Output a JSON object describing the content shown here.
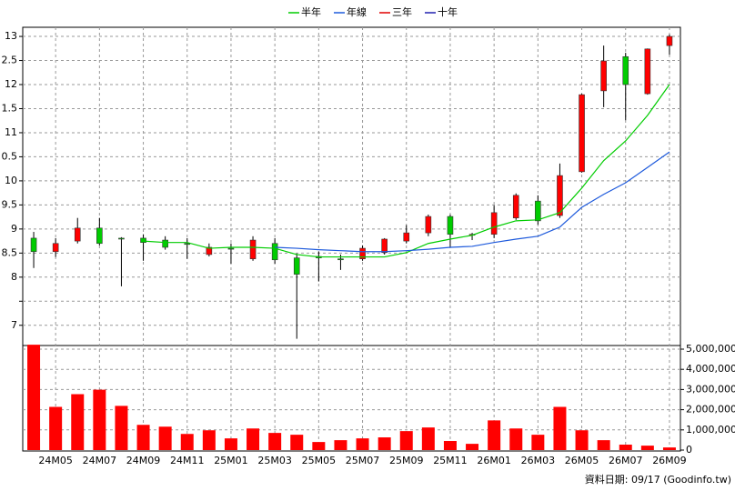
{
  "chart_data": [
    {
      "type": "candlestick",
      "categories": [
        null,
        "24M05",
        null,
        "24M07",
        null,
        "24M09",
        null,
        "24M11",
        null,
        "25M01",
        null,
        "25M03",
        null,
        "25M05",
        null,
        "25M07",
        null,
        "25M09",
        null,
        "25M11",
        null,
        "26M01",
        null,
        "26M03",
        null,
        "26M05",
        null,
        "26M07",
        null,
        "26M09"
      ],
      "open": [
        8.81,
        8.53,
        8.75,
        9.02,
        8.81,
        8.81,
        8.77,
        8.7,
        8.47,
        8.6,
        8.38,
        8.7,
        8.4,
        8.43,
        8.38,
        8.38,
        8.51,
        8.75,
        8.92,
        9.26,
        8.87,
        8.89,
        9.23,
        9.58,
        9.28,
        10.19,
        11.87,
        12.58,
        11.81,
        12.81
      ],
      "high": [
        8.94,
        8.81,
        9.23,
        9.23,
        8.83,
        8.89,
        8.85,
        8.81,
        8.7,
        8.7,
        8.85,
        8.81,
        8.49,
        8.53,
        8.47,
        8.66,
        8.81,
        9.08,
        9.3,
        9.3,
        8.92,
        9.49,
        9.74,
        9.7,
        10.36,
        11.81,
        12.81,
        12.66,
        12.75,
        13.04
      ],
      "low": [
        8.19,
        8.42,
        8.7,
        8.66,
        7.81,
        8.34,
        8.57,
        8.38,
        8.43,
        8.28,
        8.34,
        8.28,
        6.72,
        7.91,
        8.15,
        8.34,
        8.47,
        8.7,
        8.85,
        8.62,
        8.77,
        8.81,
        9.19,
        9.09,
        9.23,
        10.17,
        11.53,
        11.26,
        11.79,
        12.62
      ],
      "close": [
        8.53,
        8.7,
        9.02,
        8.7,
        8.79,
        8.72,
        8.62,
        8.68,
        8.62,
        8.58,
        8.77,
        8.36,
        8.06,
        8.4,
        8.36,
        8.6,
        8.79,
        8.92,
        9.26,
        8.89,
        8.89,
        9.34,
        9.7,
        9.17,
        10.11,
        11.79,
        12.49,
        12.0,
        12.74,
        13.0
      ],
      "up_color": "#ff0000",
      "down_color": "#00cc00",
      "series": [
        {
          "name": "半年",
          "color": "#00cc00",
          "values": [
            null,
            null,
            null,
            null,
            null,
            8.75,
            8.72,
            8.72,
            8.6,
            8.62,
            8.62,
            8.6,
            8.47,
            8.42,
            8.42,
            8.42,
            8.42,
            8.51,
            8.7,
            8.79,
            8.87,
            9.04,
            9.17,
            9.19,
            9.34,
            9.85,
            10.42,
            10.83,
            11.36,
            12.0
          ]
        },
        {
          "name": "年線",
          "color": "#1e5adc",
          "values": [
            null,
            null,
            null,
            null,
            null,
            null,
            null,
            null,
            null,
            null,
            null,
            8.62,
            8.6,
            8.57,
            8.55,
            8.53,
            8.53,
            8.55,
            8.58,
            8.62,
            8.64,
            8.72,
            8.79,
            8.85,
            9.04,
            9.45,
            9.72,
            9.96,
            10.28,
            10.6
          ]
        },
        {
          "name": "三年",
          "color": "#e00000",
          "values": [
            null,
            null,
            null,
            null,
            null,
            null,
            null,
            null,
            null,
            null,
            null,
            null,
            null,
            null,
            null,
            null,
            null,
            null,
            null,
            null,
            null,
            null,
            null,
            null,
            null,
            null,
            null,
            null,
            null,
            null
          ]
        },
        {
          "name": "十年",
          "color": "#2020b0",
          "values": [
            null,
            null,
            null,
            null,
            null,
            null,
            null,
            null,
            null,
            null,
            null,
            null,
            null,
            null,
            null,
            null,
            null,
            null,
            null,
            null,
            null,
            null,
            null,
            null,
            null,
            null,
            null,
            null,
            null,
            null
          ]
        }
      ],
      "ylim": [
        6.58,
        13.19
      ],
      "yticks": [
        13,
        {
          "value": 12.5,
          "label": "2.5"
        },
        12,
        {
          "value": 11.5,
          "label": "1.5"
        },
        11,
        {
          "value": 10.5,
          "label": "0.5"
        },
        10,
        9.5,
        9,
        8.5,
        8,
        {
          "value": 7.5,
          "label": null
        },
        7
      ],
      "grid": true
    },
    {
      "type": "bar",
      "values": [
        5220000,
        2140000,
        2770000,
        2990000,
        2190000,
        1250000,
        1160000,
        800000,
        980000,
        580000,
        1070000,
        850000,
        760000,
        400000,
        490000,
        580000,
        630000,
        940000,
        1120000,
        450000,
        310000,
        1470000,
        1070000,
        760000,
        2140000,
        980000,
        490000,
        270000,
        220000,
        130000
      ],
      "color": "#ff0000",
      "ylim": [
        0,
        5180000
      ],
      "yticks": [
        0,
        {
          "value": 1000000,
          "label": "1,000,000"
        },
        {
          "value": 2000000,
          "label": "2,000,000"
        },
        {
          "value": 3000000,
          "label": "3,000,000"
        },
        {
          "value": 4000000,
          "label": "4,000,000"
        },
        {
          "value": 5000000,
          "label": "5,000,000"
        }
      ],
      "grid": true,
      "note": "資料日期: 09/17  (Goodinfo.tw)"
    }
  ]
}
